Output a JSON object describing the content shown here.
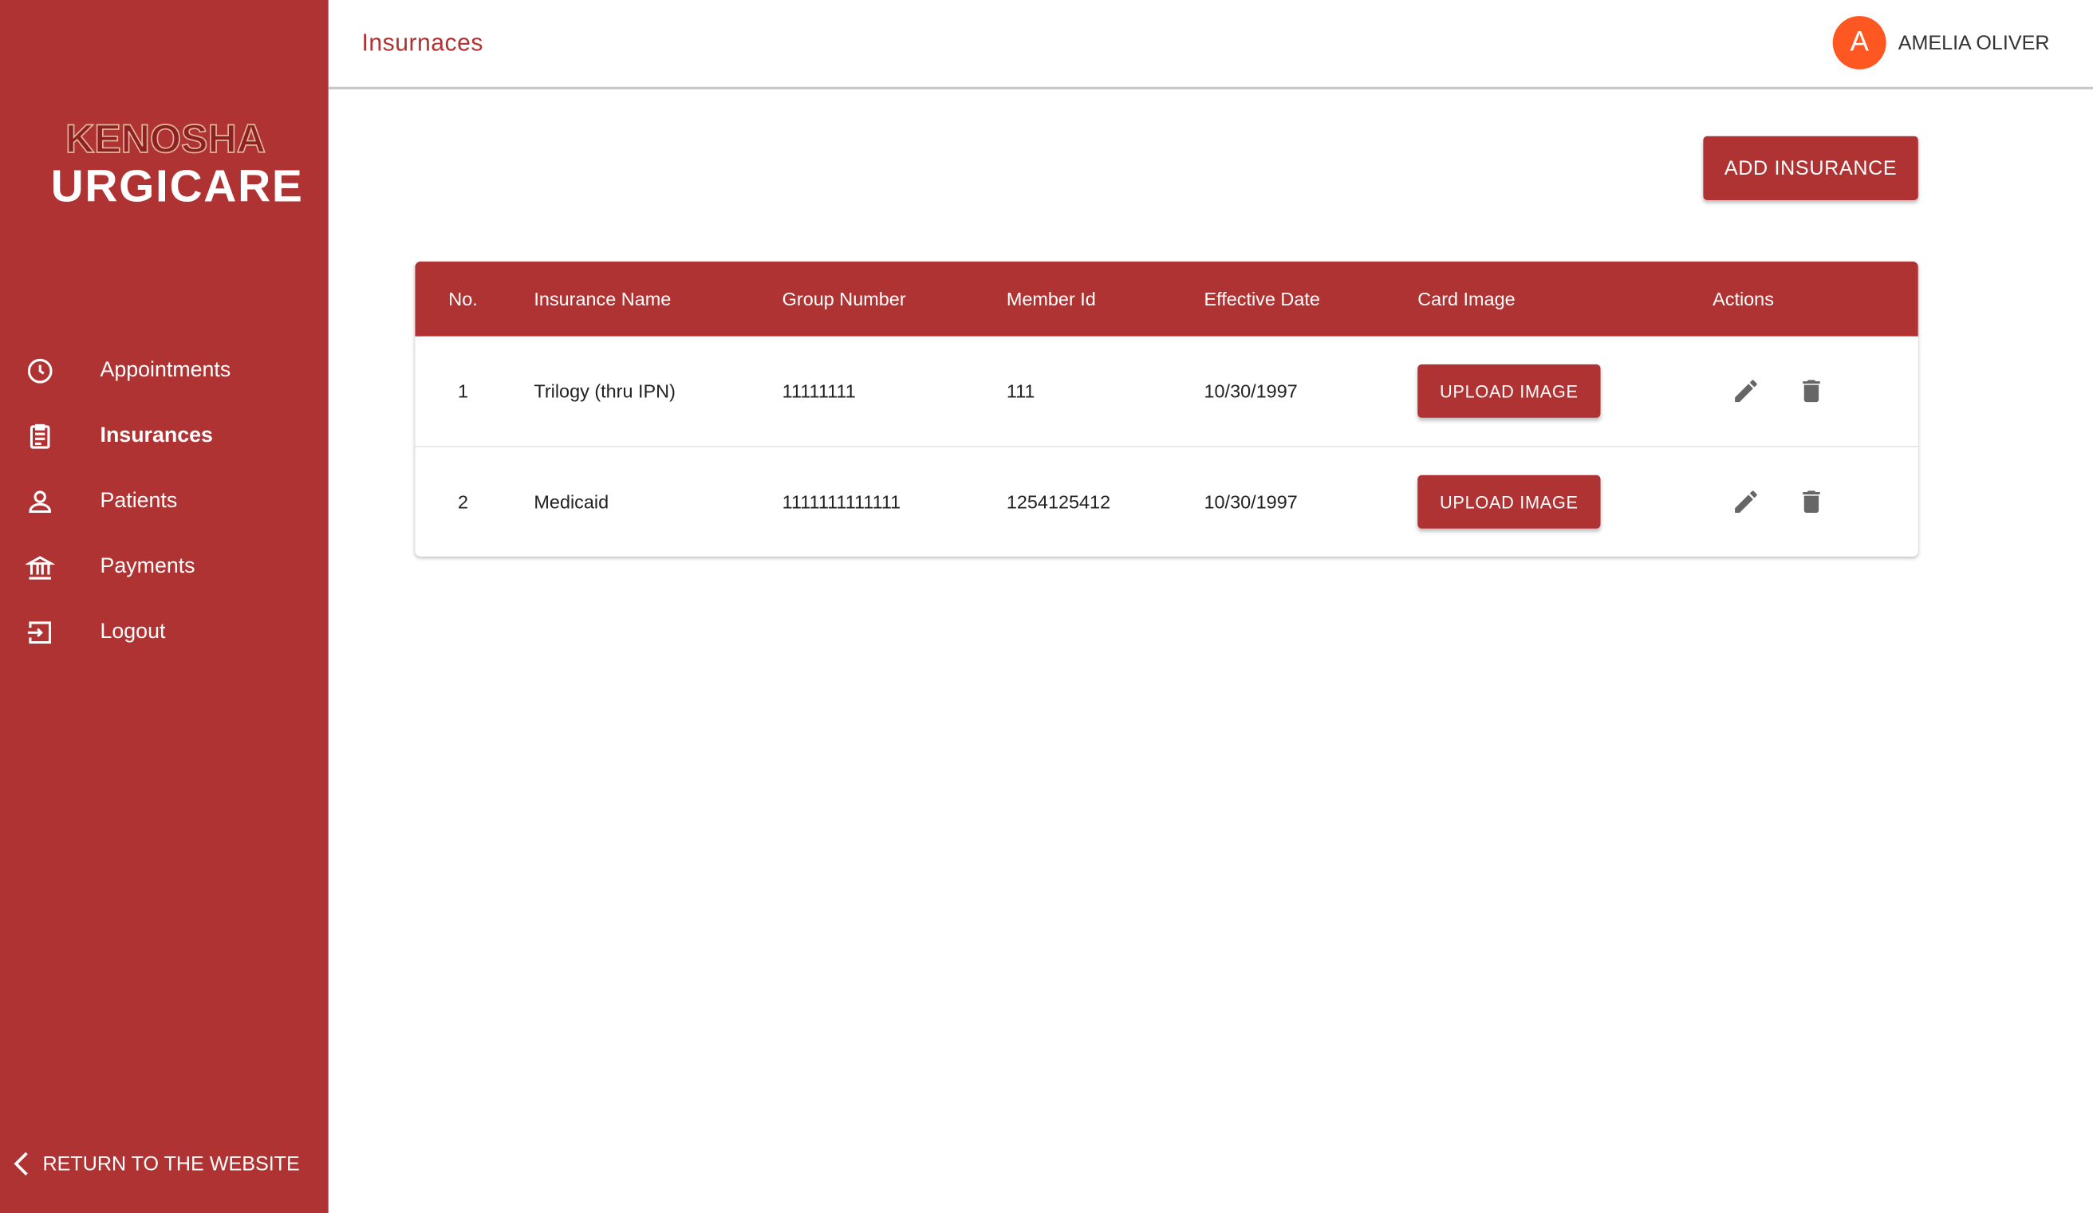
{
  "brand": {
    "logo_line1": "KENOSHA",
    "logo_line2": "URGICARE",
    "color": "#b03333"
  },
  "sidebar": {
    "items": [
      {
        "label": "Appointments",
        "icon": "clock-icon"
      },
      {
        "label": "Insurances",
        "icon": "clipboard-icon",
        "active": true
      },
      {
        "label": "Patients",
        "icon": "person-icon"
      },
      {
        "label": "Payments",
        "icon": "bank-icon"
      },
      {
        "label": "Logout",
        "icon": "logout-icon"
      }
    ],
    "return_label": "RETURN TO THE WEBSITE"
  },
  "header": {
    "title": "Insurnaces",
    "user": {
      "initial": "A",
      "name": "AMELIA OLIVER",
      "avatar_color": "#ff5722"
    }
  },
  "main": {
    "add_button": "ADD INSURANCE",
    "table": {
      "columns": [
        "No.",
        "Insurance Name",
        "Group Number",
        "Member Id",
        "Effective Date",
        "Card Image",
        "Actions"
      ],
      "rows": [
        {
          "no": "1",
          "name": "Trilogy (thru IPN)",
          "group": "11111111",
          "member": "111",
          "date": "10/30/1997",
          "upload": "UPLOAD IMAGE"
        },
        {
          "no": "2",
          "name": "Medicaid",
          "group": "1111111111111",
          "member": "1254125412",
          "date": "10/30/1997",
          "upload": "UPLOAD IMAGE"
        }
      ]
    }
  }
}
